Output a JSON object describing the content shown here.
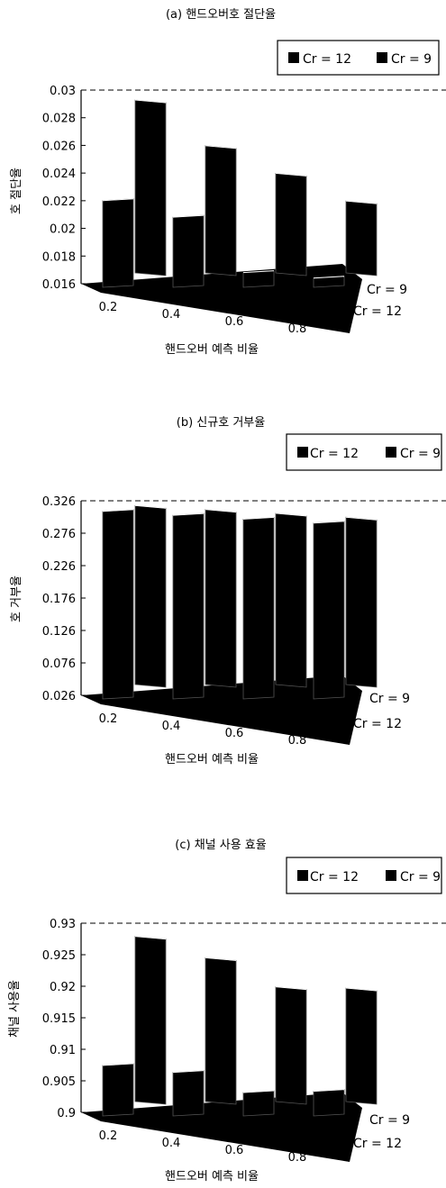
{
  "chart_data": [
    {
      "type": "bar3d",
      "title": "(a) 핸드오버호 절단율",
      "xlabel": "핸드오버 예측 비율",
      "ylabel": "호 절단율",
      "categories": [
        "0.2",
        "0.4",
        "0.6",
        "0.8"
      ],
      "depth_labels": [
        "Cr = 9",
        "Cr = 12"
      ],
      "legend": [
        "Cr = 12",
        "Cr = 9"
      ],
      "legend_position": "top-right",
      "ylim": [
        0.016,
        0.03
      ],
      "yticks": [
        "0.016",
        "0.018",
        "0.02",
        "0.022",
        "0.024",
        "0.026",
        "0.028",
        "0.03"
      ],
      "series": [
        {
          "name": "Cr = 12",
          "values": [
            0.0224,
            0.0212,
            0.0172,
            0.0168
          ]
        },
        {
          "name": "Cr = 9",
          "values": [
            0.0285,
            0.0252,
            0.0232,
            0.0212
          ]
        }
      ]
    },
    {
      "type": "bar3d",
      "title": "(b) 신규호 거부율",
      "xlabel": "핸드오버 예측 비율",
      "ylabel": "호 거부율",
      "categories": [
        "0.2",
        "0.4",
        "0.6",
        "0.8"
      ],
      "depth_labels": [
        "Cr = 9",
        "Cr = 12"
      ],
      "legend": [
        "Cr = 12",
        "Cr = 9"
      ],
      "legend_position": "top-right",
      "ylim": [
        0.026,
        0.326
      ],
      "yticks": [
        "0.026",
        "0.076",
        "0.126",
        "0.176",
        "0.226",
        "0.276",
        "0.326"
      ],
      "series": [
        {
          "name": "Cr = 12",
          "values": [
            0.318,
            0.312,
            0.306,
            0.3
          ]
        },
        {
          "name": "Cr = 9",
          "values": [
            0.302,
            0.296,
            0.29,
            0.284
          ]
        }
      ]
    },
    {
      "type": "bar3d",
      "title": "(c) 채널 사용 효율",
      "xlabel": "핸드오버 예측 비율",
      "ylabel": "채널 사용율",
      "categories": [
        "0.2",
        "0.4",
        "0.6",
        "0.8"
      ],
      "depth_labels": [
        "Cr = 9",
        "Cr = 12"
      ],
      "legend": [
        "Cr = 12",
        "Cr = 9"
      ],
      "legend_position": "top-right",
      "ylim": [
        0.9,
        0.93
      ],
      "yticks": [
        "0.9",
        "0.905",
        "0.91",
        "0.915",
        "0.92",
        "0.925",
        "0.93"
      ],
      "series": [
        {
          "name": "Cr = 12",
          "values": [
            0.9083,
            0.9072,
            0.904,
            0.9042
          ]
        },
        {
          "name": "Cr = 9",
          "values": [
            0.9262,
            0.9228,
            0.9182,
            0.918
          ]
        }
      ]
    }
  ]
}
